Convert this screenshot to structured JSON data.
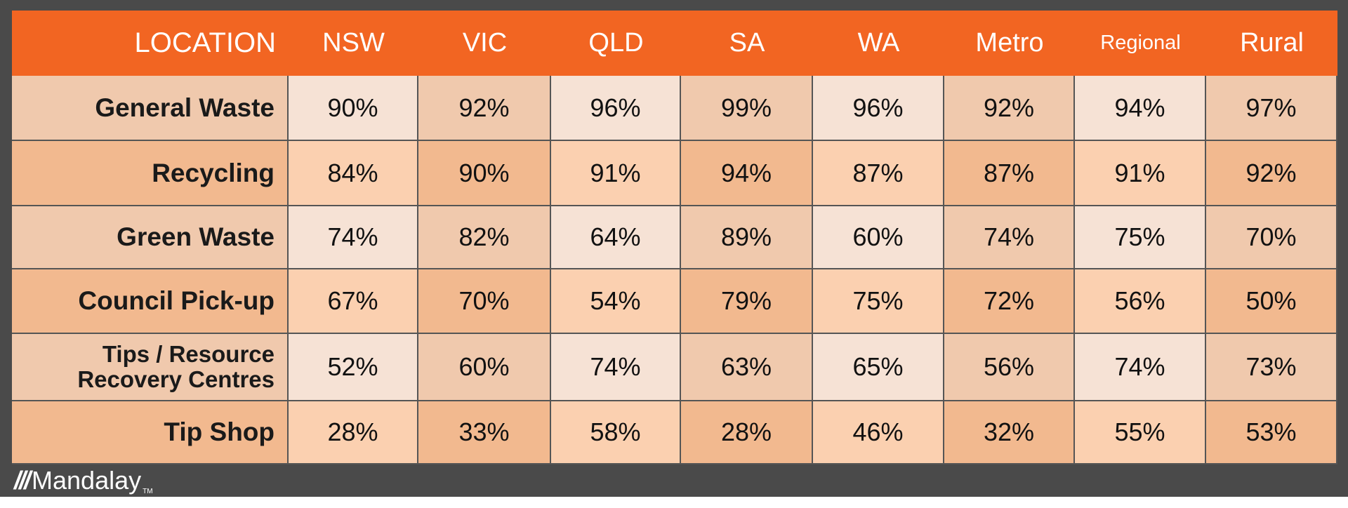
{
  "header": {
    "columns": [
      "LOCATION",
      "NSW",
      "VIC",
      "QLD",
      "SA",
      "WA",
      "Metro",
      "Regional",
      "Rural"
    ]
  },
  "table": {
    "rows": [
      {
        "label": "General Waste",
        "values": [
          "90%",
          "92%",
          "96%",
          "99%",
          "96%",
          "92%",
          "94%",
          "97%"
        ]
      },
      {
        "label": "Recycling",
        "values": [
          "84%",
          "90%",
          "91%",
          "94%",
          "87%",
          "87%",
          "91%",
          "92%"
        ]
      },
      {
        "label": "Green Waste",
        "values": [
          "74%",
          "82%",
          "64%",
          "89%",
          "60%",
          "74%",
          "75%",
          "70%"
        ]
      },
      {
        "label": "Council Pick-up",
        "values": [
          "67%",
          "70%",
          "54%",
          "79%",
          "75%",
          "72%",
          "56%",
          "50%"
        ]
      },
      {
        "label": "Tips / Resource Recovery Centres",
        "values": [
          "52%",
          "60%",
          "74%",
          "63%",
          "65%",
          "56%",
          "74%",
          "73%"
        ]
      },
      {
        "label": "Tip Shop",
        "values": [
          "28%",
          "33%",
          "58%",
          "28%",
          "46%",
          "32%",
          "55%",
          "53%"
        ]
      }
    ]
  },
  "footer": {
    "logo": "Mandalay",
    "trademark": "TM"
  }
}
